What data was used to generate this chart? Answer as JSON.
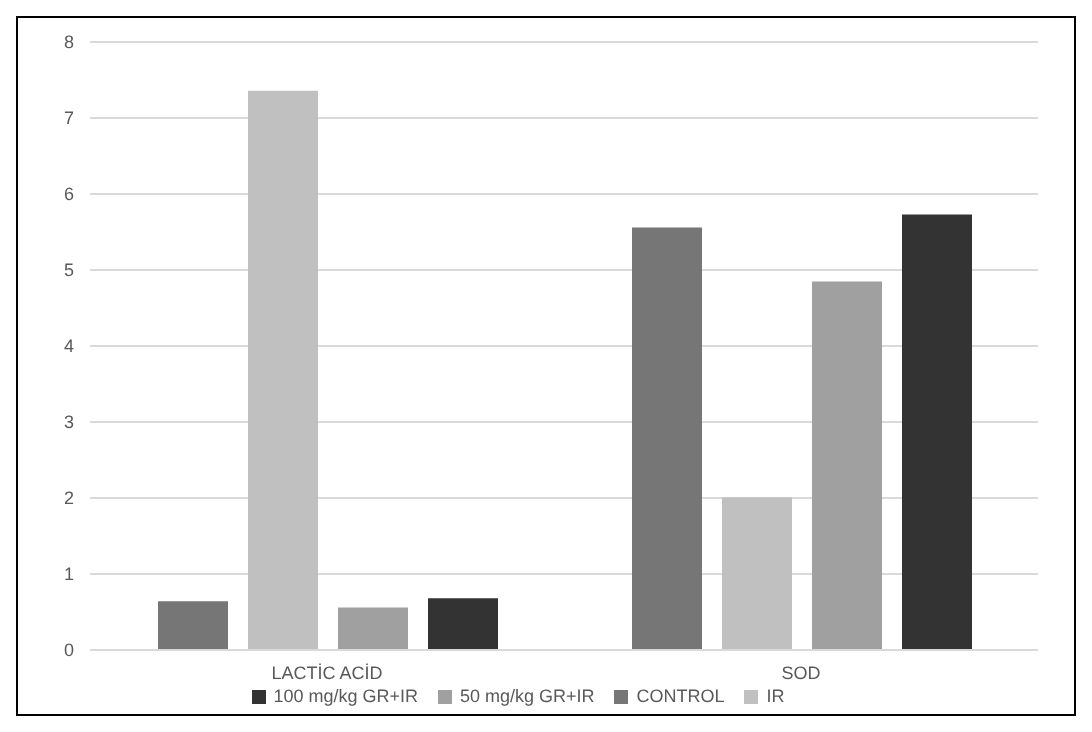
{
  "chart_data": {
    "type": "bar",
    "categories": [
      "LACTİC ACİD",
      "SOD"
    ],
    "series": [
      {
        "name": "CONTROL",
        "color": "#767676",
        "values": [
          0.64,
          5.56
        ]
      },
      {
        "name": "IR",
        "color": "#c0c0c0",
        "values": [
          7.36,
          2.01
        ]
      },
      {
        "name": "50 mg/kg GR+IR",
        "color": "#a0a0a0",
        "values": [
          0.56,
          4.85
        ]
      },
      {
        "name": "100 mg/kg GR+IR",
        "color": "#333333",
        "values": [
          0.68,
          5.73
        ]
      }
    ],
    "ylim": [
      0,
      8
    ],
    "yticks": [
      0,
      1,
      2,
      3,
      4,
      5,
      6,
      7,
      8
    ],
    "grid": "y",
    "legend": "bottom"
  }
}
